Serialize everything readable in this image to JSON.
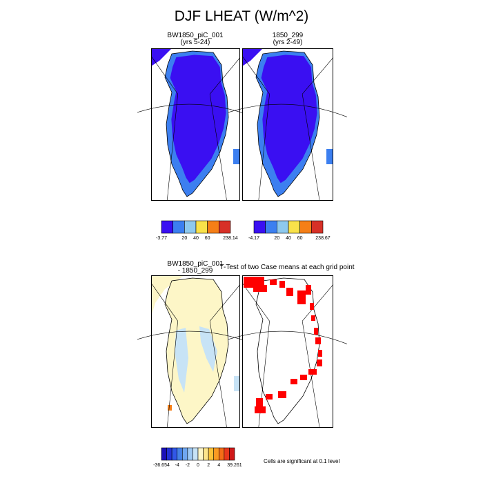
{
  "title": "DJF LHEAT (W/m^2)",
  "panels": {
    "case1": {
      "title": "BW1850_piC_001",
      "years": "(yrs 5-24)"
    },
    "case2": {
      "title": "1850_299",
      "years": "(yrs 2-49)"
    },
    "diff": {
      "title_line1": "BW1850_piC_001",
      "title_line2": "- 1850_299"
    },
    "ttest": {
      "title": "T-Test of two Case means at each grid point"
    }
  },
  "colorbars": {
    "case1": {
      "colors": [
        "#3a0ff2",
        "#3c7ff0",
        "#8ec9ee",
        "#f9e24a",
        "#f57f17",
        "#d73027"
      ],
      "labels": [
        "-3.77",
        "20",
        "40",
        "60",
        "238.14"
      ]
    },
    "case2": {
      "colors": [
        "#3a0ff2",
        "#3c7ff0",
        "#8ec9ee",
        "#f9e24a",
        "#f57f17",
        "#d73027"
      ],
      "labels": [
        "-4.17",
        "20",
        "40",
        "60",
        "238.67"
      ]
    },
    "diff": {
      "colors": [
        "#1a0fb8",
        "#2231d6",
        "#3157e8",
        "#4682e8",
        "#6fa6ef",
        "#9ec9f4",
        "#c7e3f6",
        "#fdf6c7",
        "#fde58a",
        "#fdc33a",
        "#fb9a22",
        "#f46d17",
        "#e8361b",
        "#cf1818"
      ],
      "labels": [
        "-36.654",
        "-4",
        "-2",
        "0",
        "2",
        "4",
        "39.261"
      ]
    }
  },
  "significance_note": "Cells are significant at 0.1 level",
  "colors": {
    "ice_case": "#3a0ff2",
    "margin_case": "#3c7ff0",
    "diff_pos": "#fdf6c7",
    "diff_neg": "#c7e3f6",
    "significant": "#ff0000"
  }
}
